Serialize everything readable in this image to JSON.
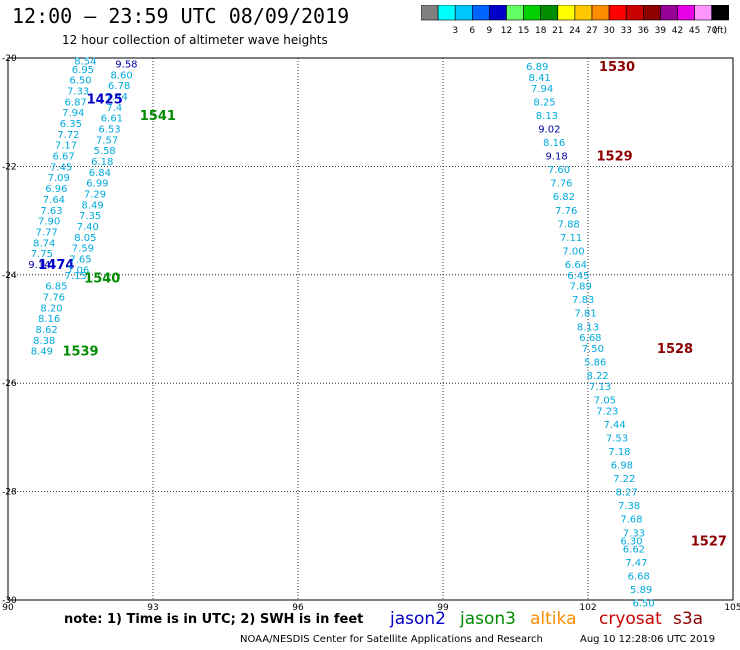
{
  "header": {
    "title": "12:00 — 23:59 UTC 08/09/2019",
    "subtitle": "12 hour collection of altimeter wave heights"
  },
  "scale": {
    "unit": "(ft)",
    "stops": [
      {
        "label": "",
        "color": "#808080"
      },
      {
        "label": "3",
        "color": "#00ffff"
      },
      {
        "label": "6",
        "color": "#00c8ff"
      },
      {
        "label": "9",
        "color": "#0064ff"
      },
      {
        "label": "12",
        "color": "#0000c8"
      },
      {
        "label": "15",
        "color": "#64ff64"
      },
      {
        "label": "18",
        "color": "#00d000"
      },
      {
        "label": "21",
        "color": "#008c00"
      },
      {
        "label": "24",
        "color": "#ffff00"
      },
      {
        "label": "27",
        "color": "#ffc800"
      },
      {
        "label": "30",
        "color": "#ff8c00"
      },
      {
        "label": "33",
        "color": "#ff0000"
      },
      {
        "label": "36",
        "color": "#c80000"
      },
      {
        "label": "39",
        "color": "#8c0000"
      },
      {
        "label": "42",
        "color": "#960096"
      },
      {
        "label": "45",
        "color": "#e600e6"
      },
      {
        "label": "70",
        "color": "#ff96ff"
      },
      {
        "label": "",
        "color": "#000000"
      }
    ]
  },
  "map": {
    "lon_ticks": [
      "90",
      "93",
      "96",
      "99",
      "102",
      "105"
    ],
    "lat_ticks": [
      "-20",
      "-22",
      "-24",
      "-26",
      "-28",
      "-30"
    ],
    "lon_range": [
      90,
      105
    ],
    "lat_range": [
      -20,
      -30
    ]
  },
  "colors": {
    "jason2": "#0000c8",
    "jason3": "#008c00",
    "altika": "#ff8c00",
    "cryosat": "#c80000",
    "s3a": "#8c0000",
    "swh_light": "#00aadd",
    "swh_dark": "#0000a0"
  },
  "tracks": [
    {
      "color": "jason2",
      "points": [
        {
          "lon": 91.6,
          "lat": -20.05,
          "swh": "8.54"
        },
        {
          "lon": 91.55,
          "lat": -20.2,
          "swh": "6.95"
        },
        {
          "lon": 91.5,
          "lat": -20.4,
          "swh": "6.50"
        },
        {
          "lon": 91.45,
          "lat": -20.6,
          "swh": "7.33"
        },
        {
          "lon": 91.4,
          "lat": -20.8,
          "swh": "6.87"
        },
        {
          "lon": 91.35,
          "lat": -21.0,
          "swh": "7.94"
        },
        {
          "lon": 91.3,
          "lat": -21.2,
          "swh": "6.35"
        },
        {
          "lon": 91.25,
          "lat": -21.4,
          "swh": "7.72"
        },
        {
          "lon": 91.2,
          "lat": -21.6,
          "swh": "7.17"
        },
        {
          "lon": 91.15,
          "lat": -21.8,
          "swh": "6.67"
        },
        {
          "lon": 91.1,
          "lat": -22.0,
          "swh": "7.45"
        },
        {
          "lon": 91.05,
          "lat": -22.2,
          "swh": "7.09"
        },
        {
          "lon": 91.0,
          "lat": -22.4,
          "swh": "6.96"
        },
        {
          "lon": 90.95,
          "lat": -22.6,
          "swh": "7.64"
        },
        {
          "lon": 90.9,
          "lat": -22.8,
          "swh": "7.63"
        },
        {
          "lon": 90.85,
          "lat": -23.0,
          "swh": "7.90"
        },
        {
          "lon": 90.8,
          "lat": -23.2,
          "swh": "7.77"
        },
        {
          "lon": 90.75,
          "lat": -23.4,
          "swh": "8.74"
        },
        {
          "lon": 90.7,
          "lat": -23.6,
          "swh": "7.75"
        },
        {
          "lon": 90.65,
          "lat": -23.8,
          "swh": "9.14",
          "dark": true
        }
      ],
      "pass": {
        "lon": 91.0,
        "lat": -23.8,
        "label": "1474"
      }
    },
    {
      "color": "jason2",
      "points": [
        {
          "lon": 92.45,
          "lat": -20.1,
          "swh": "9.58",
          "dark": true
        },
        {
          "lon": 92.35,
          "lat": -20.3,
          "swh": "8.60"
        },
        {
          "lon": 92.3,
          "lat": -20.5,
          "swh": "6.78"
        },
        {
          "lon": 92.25,
          "lat": -20.7,
          "swh": "7.44"
        },
        {
          "lon": 92.2,
          "lat": -20.9,
          "swh": "7.4"
        },
        {
          "lon": 92.15,
          "lat": -21.1,
          "swh": "6.61"
        },
        {
          "lon": 92.1,
          "lat": -21.3,
          "swh": "6.53"
        },
        {
          "lon": 92.05,
          "lat": -21.5,
          "swh": "7.57"
        },
        {
          "lon": 92.0,
          "lat": -21.7,
          "swh": "5.58"
        },
        {
          "lon": 91.95,
          "lat": -21.9,
          "swh": "6.18"
        },
        {
          "lon": 91.9,
          "lat": -22.1,
          "swh": "6.84"
        },
        {
          "lon": 91.85,
          "lat": -22.3,
          "swh": "6.99"
        },
        {
          "lon": 91.8,
          "lat": -22.5,
          "swh": "7.29"
        },
        {
          "lon": 91.75,
          "lat": -22.7,
          "swh": "8.49"
        },
        {
          "lon": 91.7,
          "lat": -22.9,
          "swh": "7.35"
        },
        {
          "lon": 91.65,
          "lat": -23.1,
          "swh": "7.40"
        },
        {
          "lon": 91.6,
          "lat": -23.3,
          "swh": "8.05"
        },
        {
          "lon": 91.55,
          "lat": -23.5,
          "swh": "7.59"
        },
        {
          "lon": 91.5,
          "lat": -23.7,
          "swh": "7.65"
        },
        {
          "lon": 91.45,
          "lat": -23.9,
          "swh": "7.06"
        },
        {
          "lon": 91.4,
          "lat": -24.0,
          "swh": "7.15"
        }
      ],
      "pass": {
        "lon": 92.0,
        "lat": -20.75,
        "label": "1425"
      }
    },
    {
      "color": "jason3",
      "points": [
        {
          "lon": 91.0,
          "lat": -24.2,
          "swh": "6.85"
        },
        {
          "lon": 90.95,
          "lat": -24.4,
          "swh": "7.76"
        },
        {
          "lon": 90.9,
          "lat": -24.6,
          "swh": "8.20"
        },
        {
          "lon": 90.85,
          "lat": -24.8,
          "swh": "8.16"
        },
        {
          "lon": 90.8,
          "lat": -25.0,
          "swh": "8.62"
        },
        {
          "lon": 90.75,
          "lat": -25.2,
          "swh": "8.38"
        },
        {
          "lon": 90.7,
          "lat": -25.4,
          "swh": "8.49"
        }
      ],
      "pass": {
        "lon": 91.5,
        "lat": -25.4,
        "label": "1539"
      }
    },
    {
      "color": "jason3",
      "points": [],
      "pass": {
        "lon": 91.95,
        "lat": -24.05,
        "label": "1540"
      }
    },
    {
      "color": "jason3",
      "points": [],
      "pass": {
        "lon": 93.1,
        "lat": -21.05,
        "label": "1541"
      }
    },
    {
      "color": "s3a",
      "points": [
        {
          "lon": 100.95,
          "lat": -20.15,
          "swh": "6.89"
        },
        {
          "lon": 101.0,
          "lat": -20.35,
          "swh": "8.41"
        },
        {
          "lon": 101.05,
          "lat": -20.55,
          "swh": "7.94"
        },
        {
          "lon": 101.1,
          "lat": -20.8,
          "swh": "8.25"
        },
        {
          "lon": 101.15,
          "lat": -21.05,
          "swh": "8.13"
        },
        {
          "lon": 101.2,
          "lat": -21.3,
          "swh": "9.02",
          "dark": true
        },
        {
          "lon": 101.3,
          "lat": -21.55,
          "swh": "8.16"
        },
        {
          "lon": 101.35,
          "lat": -21.8,
          "swh": "9.18",
          "dark": true
        },
        {
          "lon": 101.4,
          "lat": -22.05,
          "swh": "7.60"
        },
        {
          "lon": 101.45,
          "lat": -22.3,
          "swh": "7.76"
        },
        {
          "lon": 101.5,
          "lat": -22.55,
          "swh": "6.82"
        },
        {
          "lon": 101.55,
          "lat": -22.8,
          "swh": "7.76"
        },
        {
          "lon": 101.6,
          "lat": -23.05,
          "swh": "7.88"
        },
        {
          "lon": 101.65,
          "lat": -23.3,
          "swh": "7.11"
        },
        {
          "lon": 101.7,
          "lat": -23.55,
          "swh": "7.00"
        },
        {
          "lon": 101.75,
          "lat": -23.8,
          "swh": "6.64"
        },
        {
          "lon": 101.8,
          "lat": -24.0,
          "swh": "6.45"
        },
        {
          "lon": 101.85,
          "lat": -24.2,
          "swh": "7.89"
        },
        {
          "lon": 101.9,
          "lat": -24.45,
          "swh": "7.83"
        },
        {
          "lon": 101.95,
          "lat": -24.7,
          "swh": "7.81"
        },
        {
          "lon": 102.0,
          "lat": -24.95,
          "swh": "8.13"
        },
        {
          "lon": 102.05,
          "lat": -25.15,
          "swh": "6.68"
        },
        {
          "lon": 102.1,
          "lat": -25.35,
          "swh": "7.50"
        },
        {
          "lon": 102.15,
          "lat": -25.6,
          "swh": "5.86"
        }
      ],
      "pass": {
        "lon": 102.6,
        "lat": -20.15,
        "label": "1530"
      }
    },
    {
      "color": "s3a",
      "points": [],
      "pass": {
        "lon": 102.55,
        "lat": -21.8,
        "label": "1529"
      }
    },
    {
      "color": "s3a",
      "points": [
        {
          "lon": 102.2,
          "lat": -25.85,
          "swh": "8.22"
        },
        {
          "lon": 102.25,
          "lat": -26.05,
          "swh": "7.13"
        },
        {
          "lon": 102.35,
          "lat": -26.3,
          "swh": "7.05"
        },
        {
          "lon": 102.4,
          "lat": -26.5,
          "swh": "7.23"
        },
        {
          "lon": 102.55,
          "lat": -26.75,
          "swh": "7.44"
        },
        {
          "lon": 102.6,
          "lat": -27.0,
          "swh": "7.53"
        },
        {
          "lon": 102.65,
          "lat": -27.25,
          "swh": "7.18"
        },
        {
          "lon": 102.7,
          "lat": -27.5,
          "swh": "6.98"
        },
        {
          "lon": 102.75,
          "lat": -27.75,
          "swh": "7.22"
        },
        {
          "lon": 102.8,
          "lat": -28.0,
          "swh": "8.27"
        },
        {
          "lon": 102.85,
          "lat": -28.25,
          "swh": "7.38"
        },
        {
          "lon": 102.9,
          "lat": -28.5,
          "swh": "7.68"
        },
        {
          "lon": 102.95,
          "lat": -28.75,
          "swh": "7.33"
        },
        {
          "lon": 102.9,
          "lat": -28.9,
          "swh": "6.30"
        },
        {
          "lon": 102.95,
          "lat": -29.05,
          "swh": "6.62"
        },
        {
          "lon": 103.0,
          "lat": -29.3,
          "swh": "7.47"
        },
        {
          "lon": 103.05,
          "lat": -29.55,
          "swh": "6.68"
        },
        {
          "lon": 103.1,
          "lat": -29.8,
          "swh": "5.89"
        },
        {
          "lon": 103.15,
          "lat": -30.05,
          "swh": "6.50"
        }
      ],
      "pass": {
        "lon": 103.8,
        "lat": -25.35,
        "label": "1528"
      }
    },
    {
      "color": "s3a",
      "points": [],
      "pass": {
        "lon": 104.5,
        "lat": -28.9,
        "label": "1527"
      }
    }
  ],
  "footer": {
    "note": "note: 1) Time is in UTC; 2) SWH is in feet",
    "satellites": [
      {
        "name": "jason2",
        "color": "#0000c8"
      },
      {
        "name": "jason3",
        "color": "#008c00"
      },
      {
        "name": "altika",
        "color": "#ff8c00"
      },
      {
        "name": "cryosat",
        "color": "#c80000"
      },
      {
        "name": "s3a",
        "color": "#8c0000"
      }
    ],
    "credit": "NOAA/NESDIS Center for Satellite Applications and Research",
    "timestamp": "Aug 10 12:28:06 UTC 2019"
  }
}
